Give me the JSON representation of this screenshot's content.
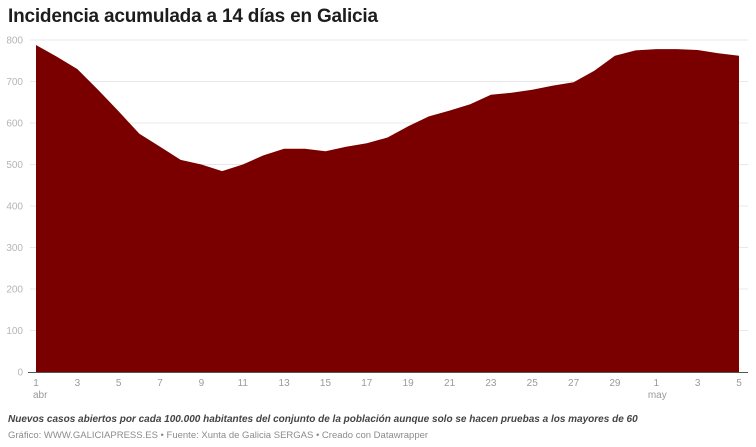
{
  "header": {
    "title": "Incidencia acumulada a 14 días en Galicia"
  },
  "footer": {
    "notes": "Nuevos casos abiertos por cada 100.000 habitantes del conjunto de la población aunque solo se hacen pruebas a los mayores de 60",
    "byline": "Gráfico: WWW.GALICIAPRESS.ES • Fuente: Xunta de Galicia SERGAS • Creado con Datawrapper"
  },
  "colors": {
    "area": "#7a0000",
    "grid": "#e8e8e8",
    "axis": "#555555"
  },
  "chart_data": {
    "type": "area",
    "title": "Incidencia acumulada a 14 días en Galicia",
    "xlabel": "",
    "ylabel": "",
    "ylim": [
      0,
      800
    ],
    "yticks": [
      0,
      100,
      200,
      300,
      400,
      500,
      600,
      700,
      800
    ],
    "grid": true,
    "legend": "none",
    "x": [
      "1 abr",
      "2 abr",
      "3 abr",
      "4 abr",
      "5 abr",
      "6 abr",
      "7 abr",
      "8 abr",
      "9 abr",
      "10 abr",
      "11 abr",
      "12 abr",
      "13 abr",
      "14 abr",
      "15 abr",
      "16 abr",
      "17 abr",
      "18 abr",
      "19 abr",
      "20 abr",
      "21 abr",
      "22 abr",
      "23 abr",
      "24 abr",
      "25 abr",
      "26 abr",
      "27 abr",
      "28 abr",
      "29 abr",
      "30 abr",
      "1 may",
      "2 may",
      "3 may",
      "4 may",
      "5 may"
    ],
    "values": [
      788,
      760,
      730,
      680,
      628,
      574,
      543,
      511,
      500,
      484,
      500,
      522,
      538,
      538,
      532,
      543,
      551,
      565,
      592,
      616,
      630,
      645,
      668,
      673,
      680,
      690,
      698,
      726,
      762,
      775,
      778,
      778,
      776,
      768,
      762
    ],
    "xtick_labels": [
      {
        "index": 0,
        "label": "1",
        "sub": "abr"
      },
      {
        "index": 2,
        "label": "3"
      },
      {
        "index": 4,
        "label": "5"
      },
      {
        "index": 6,
        "label": "7"
      },
      {
        "index": 8,
        "label": "9"
      },
      {
        "index": 10,
        "label": "11"
      },
      {
        "index": 12,
        "label": "13"
      },
      {
        "index": 14,
        "label": "15"
      },
      {
        "index": 16,
        "label": "17"
      },
      {
        "index": 18,
        "label": "19"
      },
      {
        "index": 20,
        "label": "21"
      },
      {
        "index": 22,
        "label": "23"
      },
      {
        "index": 24,
        "label": "25"
      },
      {
        "index": 26,
        "label": "27"
      },
      {
        "index": 28,
        "label": "29"
      },
      {
        "index": 30,
        "label": "1",
        "sub": "may"
      },
      {
        "index": 32,
        "label": "3"
      },
      {
        "index": 34,
        "label": "5"
      }
    ]
  }
}
